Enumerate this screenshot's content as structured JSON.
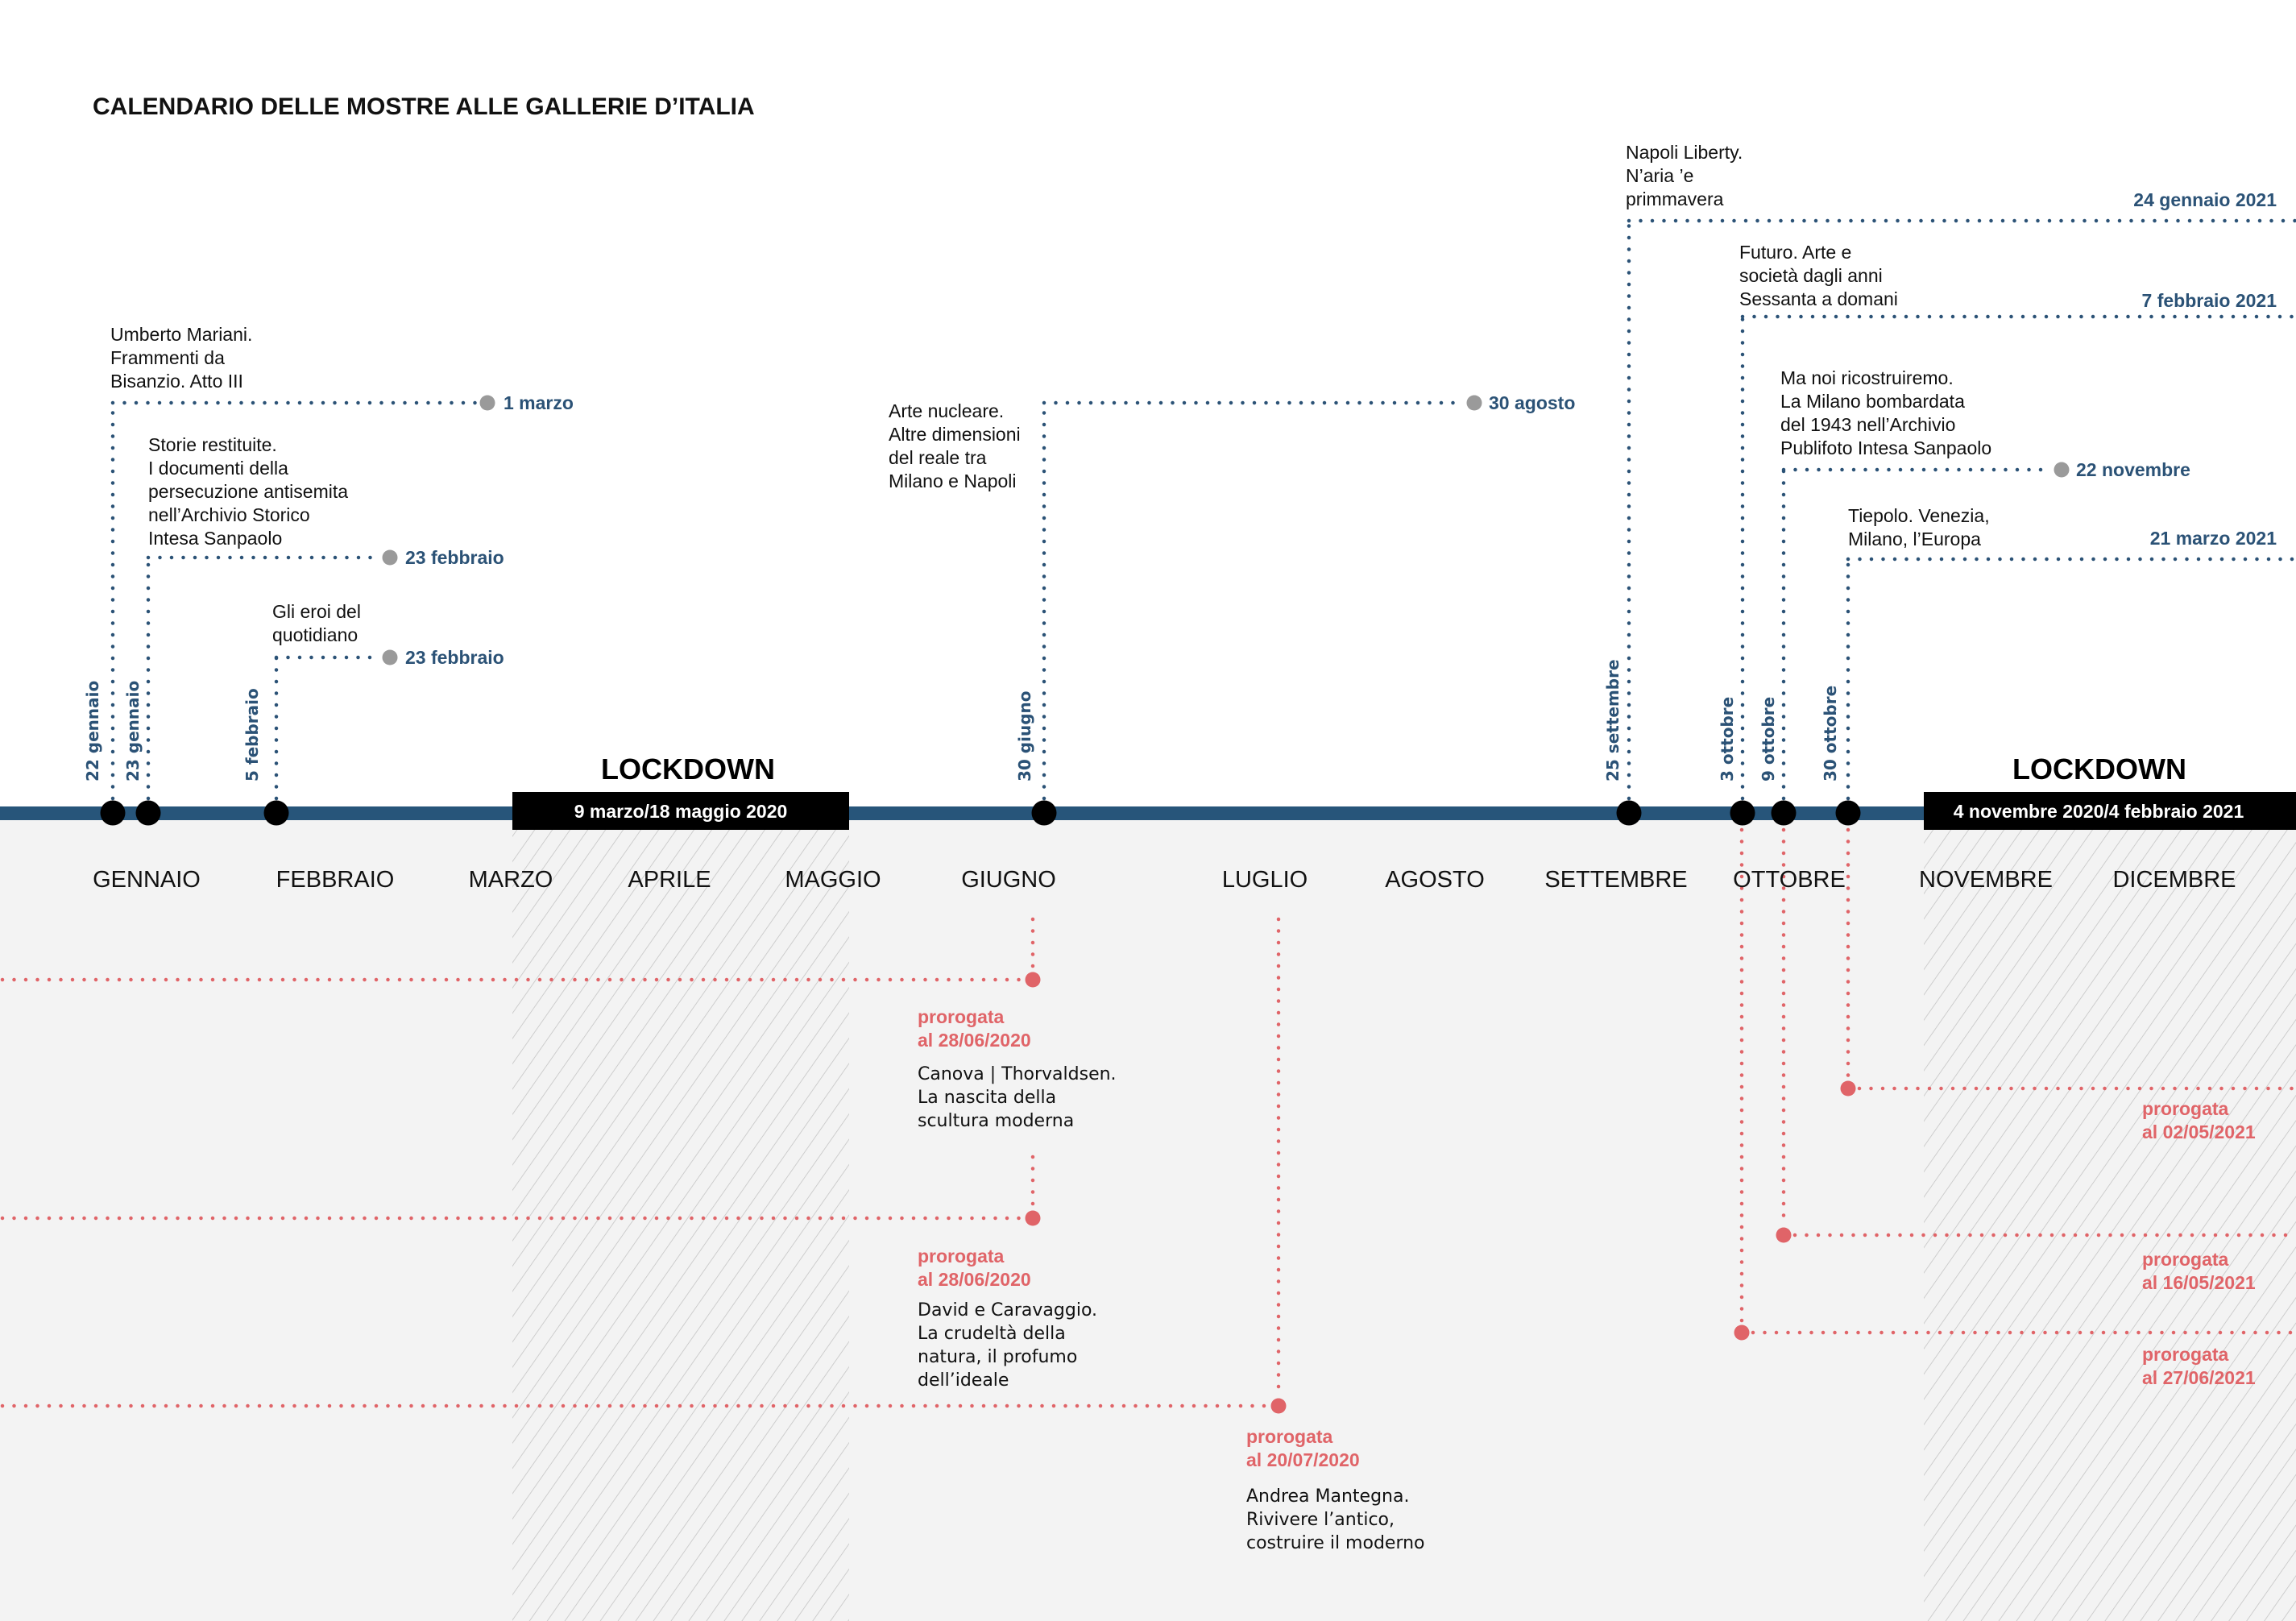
{
  "title": "CALENDARIO DELLE MOSTRE ALLE GALLERIE D’ITALIA",
  "colors": {
    "navy": "#2b5276",
    "timeline_bar": "#27557a",
    "red": "#e06468",
    "grey_dot": "#9a9a9a",
    "lower_bg": "#f3f3f3",
    "hatch": "#c4c4c4",
    "black": "#000000"
  },
  "months": [
    "GENNAIO",
    "FEBBRAIO",
    "MARZO",
    "APRILE",
    "MAGGIO",
    "GIUGNO",
    "LUGLIO",
    "AGOSTO",
    "SETTEMBRE",
    "OTTOBRE",
    "NOVEMBRE",
    "DICEMBRE"
  ],
  "lockdowns": [
    {
      "title": "LOCKDOWN",
      "range": "9 marzo/18 maggio 2020"
    },
    {
      "title": "LOCKDOWN",
      "range": "4 novembre 2020/4 febbraio 2021"
    }
  ],
  "exhibitions": [
    {
      "id": "mariani",
      "start": "22 gennaio",
      "end": "1 marzo",
      "end_marker": "dot",
      "title_lines": [
        "Umberto Mariani.",
        "Frammenti da",
        "Bisanzio. Atto III"
      ]
    },
    {
      "id": "storie",
      "start": "23 gennaio",
      "end": "23 febbraio",
      "end_marker": "dot",
      "title_lines": [
        "Storie restituite.",
        "I documenti della",
        "persecuzione antisemita",
        "nell’Archivio Storico",
        "Intesa Sanpaolo"
      ]
    },
    {
      "id": "eroi",
      "start": "5 febbraio",
      "end": "23 febbraio",
      "end_marker": "dot",
      "title_lines": [
        "Gli eroi del",
        "quotidiano"
      ]
    },
    {
      "id": "nucleare",
      "start": "30 giugno",
      "end": "30 agosto",
      "end_marker": "dot",
      "title_lines": [
        "Arte nucleare.",
        "Altre dimensioni",
        "del reale tra",
        "Milano e Napoli"
      ]
    },
    {
      "id": "napoli",
      "start": "25 settembre",
      "end": "24 gennaio 2021",
      "end_marker": "edge",
      "title_lines": [
        "Napoli Liberty.",
        "N’aria ’e",
        "primmavera"
      ]
    },
    {
      "id": "futuro",
      "start": "3 ottobre",
      "end": "7 febbraio 2021",
      "end_marker": "edge",
      "title_lines": [
        "Futuro. Arte e",
        "società dagli anni",
        "Sessanta a domani"
      ]
    },
    {
      "id": "ricostruiremo",
      "start": "9 ottobre",
      "end": "22 novembre",
      "end_marker": "dot",
      "title_lines": [
        "Ma noi ricostruiremo.",
        "La Milano bombardata",
        "del 1943 nell’Archivio",
        "Publifoto Intesa Sanpaolo"
      ]
    },
    {
      "id": "tiepolo",
      "start": "30 ottobre",
      "end": "21 marzo 2021",
      "end_marker": "edge",
      "title_lines": [
        "Tiepolo. Venezia,",
        "Milano, l’Europa"
      ]
    }
  ],
  "extensions": [
    {
      "id": "canova",
      "label_lines": [
        "prorogata",
        "al 28/06/2020"
      ],
      "title_lines": [
        "Canova | Thorvaldsen.",
        "La nascita della",
        "scultura moderna"
      ]
    },
    {
      "id": "david",
      "label_lines": [
        "prorogata",
        "al 28/06/2020"
      ],
      "title_lines": [
        "David e Caravaggio.",
        "La crudeltà della",
        "natura, il profumo",
        "dell’ideale"
      ]
    },
    {
      "id": "mantegna",
      "label_lines": [
        "prorogata",
        "al 20/07/2020"
      ],
      "title_lines": [
        "Andrea Mantegna.",
        "Rivivere l’antico,",
        "costruire il moderno"
      ]
    },
    {
      "id": "tiepolo",
      "label_lines": [
        "prorogata",
        "al 02/05/2021"
      ],
      "title_lines": []
    },
    {
      "id": "ricostruiremo",
      "label_lines": [
        "prorogata",
        "al 16/05/2021"
      ],
      "title_lines": []
    },
    {
      "id": "futuro",
      "label_lines": [
        "prorogata",
        "al 27/06/2021"
      ],
      "title_lines": []
    }
  ]
}
